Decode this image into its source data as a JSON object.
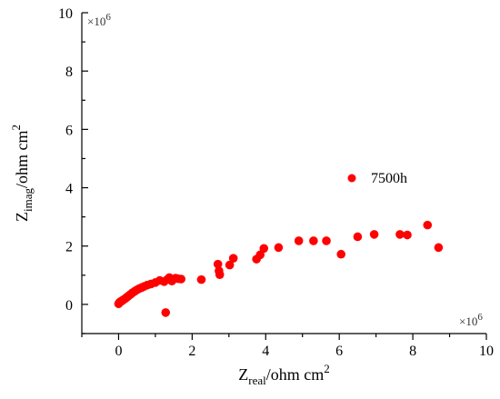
{
  "chart_data": {
    "type": "scatter",
    "x_label": {
      "main": "Z",
      "sub": "real",
      "unit": "/ohm cm",
      "sup": "2"
    },
    "y_label": {
      "main": "Z",
      "sub": "imag",
      "unit": "/ohm cm",
      "sup": "2"
    },
    "x_multiplier": "×10",
    "x_multiplier_exp": "6",
    "y_multiplier": "×10",
    "y_multiplier_exp": "6",
    "xlim": [
      -1,
      10
    ],
    "ylim": [
      -1,
      10
    ],
    "x_ticks": [
      0,
      2,
      4,
      6,
      8,
      10
    ],
    "y_ticks": [
      0,
      2,
      4,
      6,
      8,
      10
    ],
    "legend_position": "middle-right",
    "series": [
      {
        "name": "7500h",
        "color": "#ff0000",
        "points": [
          [
            0.0,
            0.02
          ],
          [
            0.02,
            0.06
          ],
          [
            0.04,
            0.08
          ],
          [
            0.06,
            0.1
          ],
          [
            0.09,
            0.12
          ],
          [
            0.12,
            0.15
          ],
          [
            0.16,
            0.18
          ],
          [
            0.2,
            0.22
          ],
          [
            0.24,
            0.26
          ],
          [
            0.28,
            0.3
          ],
          [
            0.33,
            0.35
          ],
          [
            0.38,
            0.4
          ],
          [
            0.44,
            0.45
          ],
          [
            0.5,
            0.5
          ],
          [
            0.56,
            0.54
          ],
          [
            0.63,
            0.58
          ],
          [
            0.7,
            0.62
          ],
          [
            0.78,
            0.66
          ],
          [
            0.88,
            0.7
          ],
          [
            1.0,
            0.75
          ],
          [
            1.12,
            0.82
          ],
          [
            1.24,
            0.78
          ],
          [
            1.32,
            0.85
          ],
          [
            1.38,
            0.92
          ],
          [
            1.45,
            0.8
          ],
          [
            1.55,
            0.9
          ],
          [
            1.62,
            0.88
          ],
          [
            1.7,
            0.87
          ],
          [
            1.28,
            -0.28
          ],
          [
            2.25,
            0.85
          ],
          [
            2.7,
            1.38
          ],
          [
            2.73,
            1.15
          ],
          [
            2.75,
            1.02
          ],
          [
            3.02,
            1.35
          ],
          [
            3.12,
            1.58
          ],
          [
            3.75,
            1.55
          ],
          [
            3.85,
            1.7
          ],
          [
            3.95,
            1.92
          ],
          [
            4.35,
            1.95
          ],
          [
            4.9,
            2.18
          ],
          [
            5.3,
            2.18
          ],
          [
            5.65,
            2.18
          ],
          [
            6.05,
            1.72
          ],
          [
            6.5,
            2.32
          ],
          [
            6.95,
            2.4
          ],
          [
            7.65,
            2.4
          ],
          [
            7.85,
            2.38
          ],
          [
            8.4,
            2.72
          ],
          [
            8.7,
            1.95
          ]
        ]
      }
    ]
  }
}
